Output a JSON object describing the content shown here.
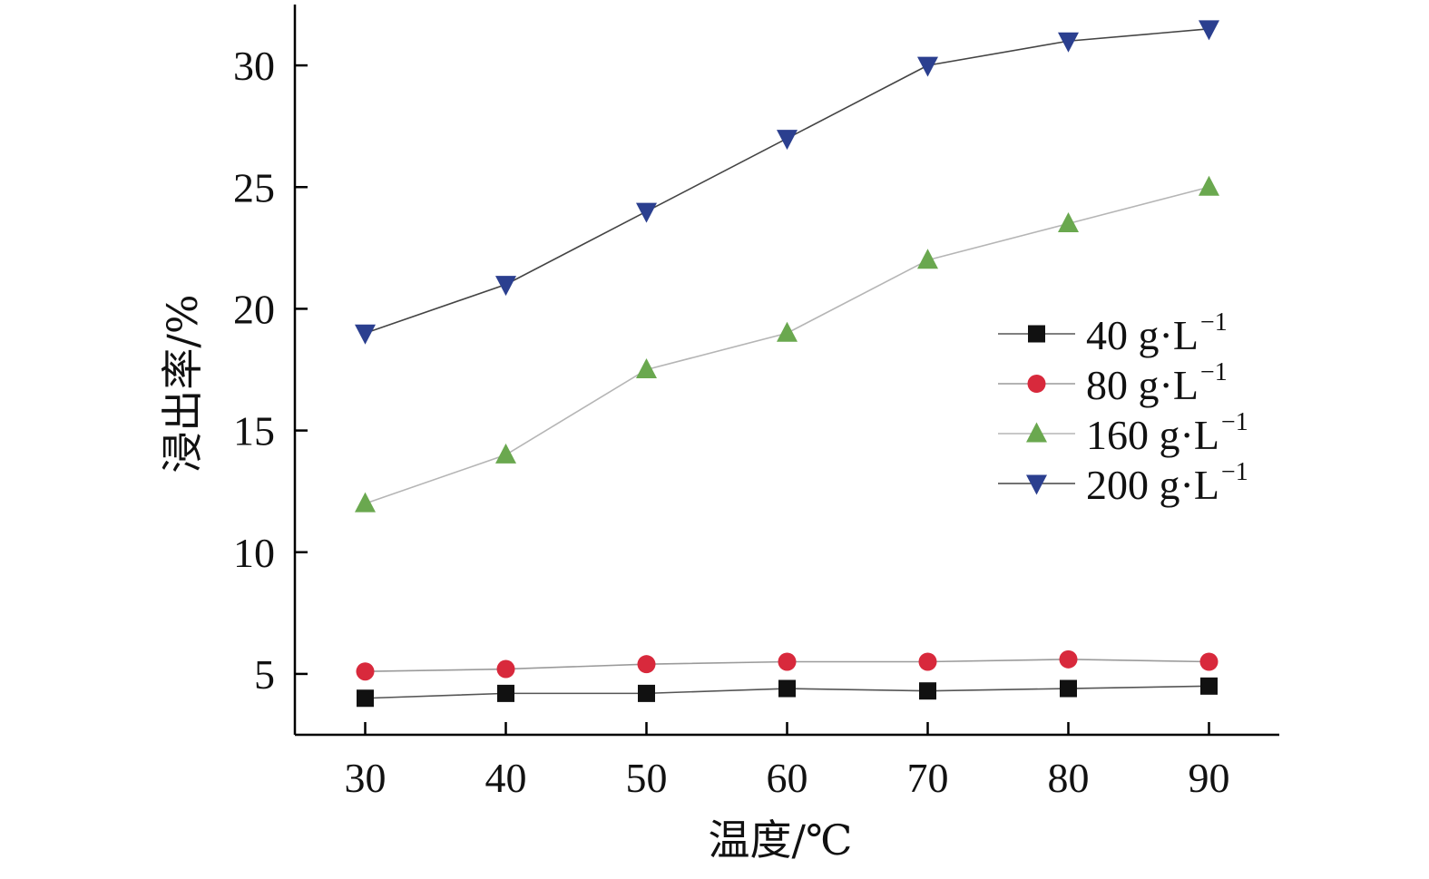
{
  "chart_data": {
    "type": "line",
    "xlabel": "温度/℃",
    "ylabel": "浸出率/%",
    "x": [
      30,
      40,
      50,
      60,
      70,
      80,
      90
    ],
    "xlim": [
      25,
      95
    ],
    "ylim": [
      2.5,
      32.5
    ],
    "xticks": [
      30,
      40,
      50,
      60,
      70,
      80,
      90
    ],
    "yticks": [
      5,
      10,
      15,
      20,
      25,
      30
    ],
    "grid": false,
    "legend_position": "right",
    "series": [
      {
        "name": "40 g·L",
        "name_sup": "−1",
        "marker": "square",
        "color": "#111111",
        "line_color": "#555555",
        "values": [
          4.0,
          4.2,
          4.2,
          4.4,
          4.3,
          4.4,
          4.5
        ]
      },
      {
        "name": "80 g·L",
        "name_sup": "−1",
        "marker": "circle",
        "color": "#d8293c",
        "line_color": "#9a9a9a",
        "values": [
          5.1,
          5.2,
          5.4,
          5.5,
          5.5,
          5.6,
          5.5
        ]
      },
      {
        "name": "160 g·L",
        "name_sup": "−1",
        "marker": "triangle-up",
        "color": "#6aa84f",
        "line_color": "#b5b5b5",
        "values": [
          12.0,
          14.0,
          17.5,
          19.0,
          22.0,
          23.5,
          25.0
        ]
      },
      {
        "name": "200 g·L",
        "name_sup": "−1",
        "marker": "triangle-down",
        "color": "#2b3f8f",
        "line_color": "#444444",
        "values": [
          19.0,
          21.0,
          24.0,
          27.0,
          30.0,
          31.0,
          31.5
        ]
      }
    ]
  }
}
